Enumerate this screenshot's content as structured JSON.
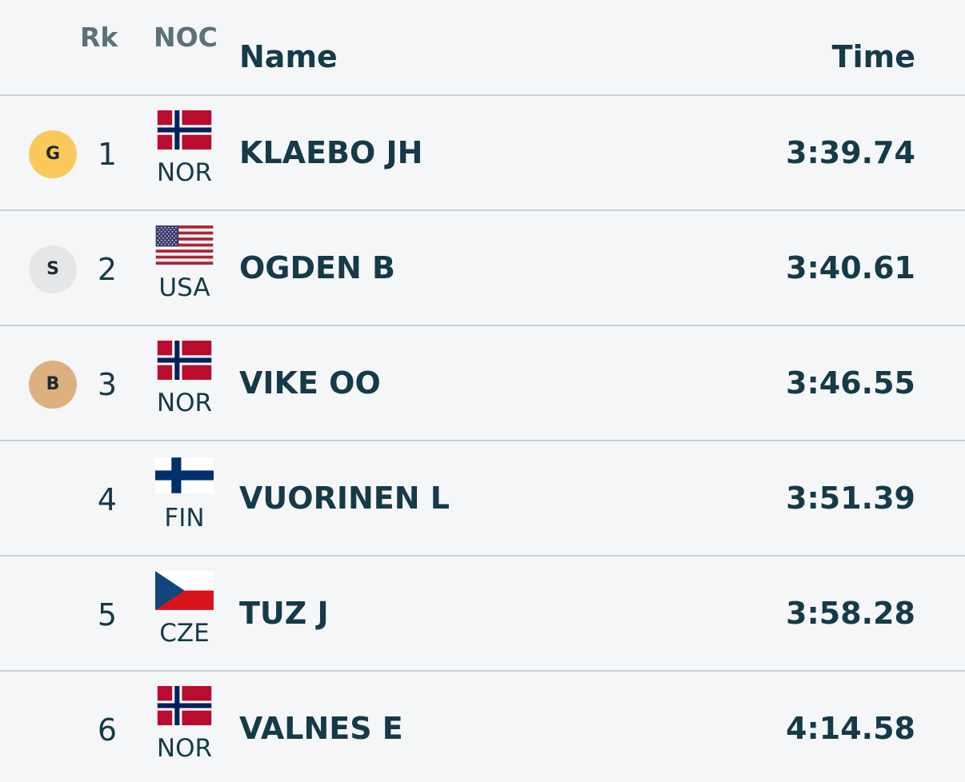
{
  "header": {
    "rk": "Rk",
    "noc": "NOC",
    "name": "Name",
    "time": "Time"
  },
  "rows": [
    {
      "medal": "G",
      "medal_type": "gold",
      "rank": "1",
      "noc": "NOC_NOR",
      "noc_code": "NOR",
      "name": "KLAEBO JH",
      "time": "3:39.74"
    },
    {
      "medal": "S",
      "medal_type": "silver",
      "rank": "2",
      "noc": "NOC_USA",
      "noc_code": "USA",
      "name": "OGDEN B",
      "time": "3:40.61"
    },
    {
      "medal": "B",
      "medal_type": "bronze",
      "rank": "3",
      "noc": "NOC_NOR",
      "noc_code": "NOR",
      "name": "VIKE OO",
      "time": "3:46.55"
    },
    {
      "medal": "",
      "medal_type": "",
      "rank": "4",
      "noc": "NOC_FIN",
      "noc_code": "FIN",
      "name": "VUORINEN L",
      "time": "3:51.39"
    },
    {
      "medal": "",
      "medal_type": "",
      "rank": "5",
      "noc": "NOC_CZE",
      "noc_code": "CZE",
      "name": "TUZ J",
      "time": "3:58.28"
    },
    {
      "medal": "",
      "medal_type": "",
      "rank": "6",
      "noc": "NOC_NOR",
      "noc_code": "NOR",
      "name": "VALNES E",
      "time": "4:14.58"
    }
  ],
  "colors": {
    "gold": "#fbc95b",
    "silver": "#e4e6e8",
    "bronze": "#dcb07f",
    "text": "#163a47",
    "header_text": "#5c7178",
    "divider": "#c8d1d6"
  }
}
